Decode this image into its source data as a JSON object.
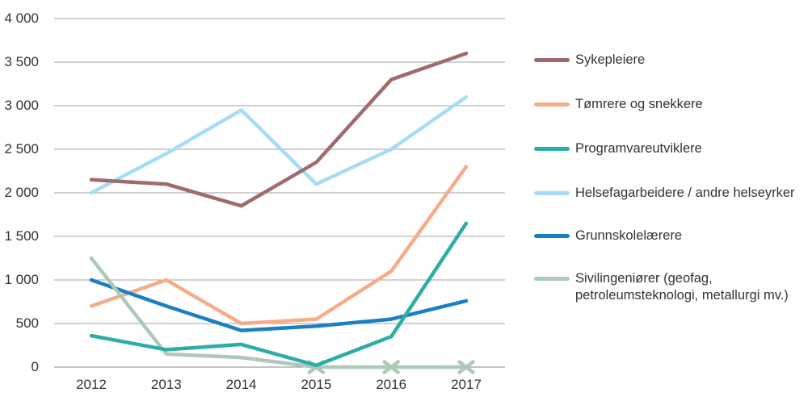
{
  "chart_data": {
    "type": "line",
    "title": "",
    "xlabel": "",
    "ylabel": "",
    "x_labels": [
      "2012",
      "2013",
      "2014",
      "2015",
      "2016",
      "2017"
    ],
    "y_ticks": [
      {
        "label": "4 000",
        "value": 4000
      },
      {
        "label": "3 500",
        "value": 3500
      },
      {
        "label": "3 000",
        "value": 3000
      },
      {
        "label": "2 500",
        "value": 2500
      },
      {
        "label": "2 000",
        "value": 2000
      },
      {
        "label": "1 500",
        "value": 1500
      },
      {
        "label": "1 000",
        "value": 1000
      },
      {
        "label": "500",
        "value": 500
      },
      {
        "label": "0",
        "value": 0
      }
    ],
    "ylim": [
      0,
      4000
    ],
    "grid": "horizontal-only",
    "legend_position": "right",
    "series": [
      {
        "name": "Sykepleiere",
        "color": "#a16a6d",
        "values": [
          2150,
          2100,
          1850,
          2350,
          3300,
          3600
        ]
      },
      {
        "name": "Tømrere og snekkere",
        "color": "#f4ad89",
        "values": [
          700,
          1000,
          500,
          550,
          1100,
          2300
        ]
      },
      {
        "name": "Programvareutviklere",
        "color": "#2cada5",
        "values": [
          360,
          200,
          260,
          20,
          350,
          1650
        ]
      },
      {
        "name": "Helsefagarbeidere / andre helseyrker",
        "color": "#a6dcf5",
        "values": [
          2000,
          2450,
          2950,
          2100,
          2500,
          3100
        ]
      },
      {
        "name": "Grunnskolelærere",
        "color": "#1a80c4",
        "values": [
          1000,
          700,
          420,
          470,
          550,
          760
        ]
      },
      {
        "name": "Sivilingeniører (geofag, petroleumsteknologi, metallurgi mv.)",
        "color": "#aec9b8",
        "values": [
          1250,
          150,
          110,
          0,
          0,
          0
        ],
        "marker": "x",
        "marker_points": [
          3,
          4,
          5
        ]
      }
    ]
  },
  "colors": {
    "background": "#ffffff",
    "gridline": "#a0a0a0",
    "zero_line": "#888888",
    "text": "#333333"
  }
}
